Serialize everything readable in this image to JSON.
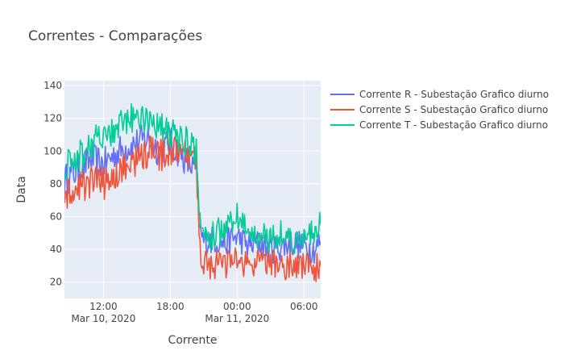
{
  "chart_data": {
    "type": "line",
    "title": "Correntes - Comparações",
    "xlabel": "Corrente",
    "ylabel": "Data",
    "x_range": [
      "2020-03-10T08:30",
      "2020-03-11T07:30"
    ],
    "x_tick_labels": [
      {
        "time": "12:00",
        "date": "Mar 10, 2020"
      },
      {
        "time": "18:00",
        "date": ""
      },
      {
        "time": "00:00",
        "date": "Mar 11, 2020"
      },
      {
        "time": "06:00",
        "date": ""
      }
    ],
    "y_range": [
      10,
      143
    ],
    "y_tick_labels": [
      "20",
      "40",
      "60",
      "80",
      "100",
      "120",
      "140"
    ],
    "grid": true,
    "legend_position": "right",
    "background_color": "#e5ecf6",
    "x_sample": [
      "08:30",
      "09:00",
      "10:00",
      "11:00",
      "12:00",
      "13:00",
      "14:00",
      "15:00",
      "16:00",
      "17:00",
      "18:00",
      "19:00",
      "20:00",
      "20:20",
      "20:40",
      "21:00",
      "22:00",
      "23:00",
      "00:00",
      "01:00",
      "02:00",
      "03:00",
      "04:00",
      "05:00",
      "06:00",
      "07:00",
      "07:30"
    ],
    "series": [
      {
        "name": "Corrente R - Subestação Grafico diurno",
        "color": "#636efa",
        "values": [
          82,
          85,
          90,
          95,
          92,
          98,
          102,
          105,
          108,
          100,
          105,
          98,
          90,
          88,
          50,
          45,
          46,
          44,
          48,
          42,
          44,
          40,
          42,
          44,
          42,
          40,
          45
        ]
      },
      {
        "name": "Corrente S - Subestação Grafico diurno",
        "color": "#ef553b",
        "values": [
          75,
          72,
          78,
          82,
          80,
          85,
          90,
          95,
          100,
          97,
          100,
          98,
          95,
          92,
          40,
          32,
          30,
          31,
          33,
          30,
          31,
          32,
          30,
          31,
          30,
          28,
          30
        ]
      },
      {
        "name": "Corrente T - Subestação Grafico diurno",
        "color": "#00cc96",
        "values": [
          90,
          92,
          98,
          105,
          108,
          112,
          118,
          120,
          122,
          115,
          110,
          108,
          102,
          100,
          55,
          45,
          50,
          52,
          60,
          50,
          48,
          47,
          50,
          46,
          45,
          50,
          55
        ]
      }
    ]
  }
}
